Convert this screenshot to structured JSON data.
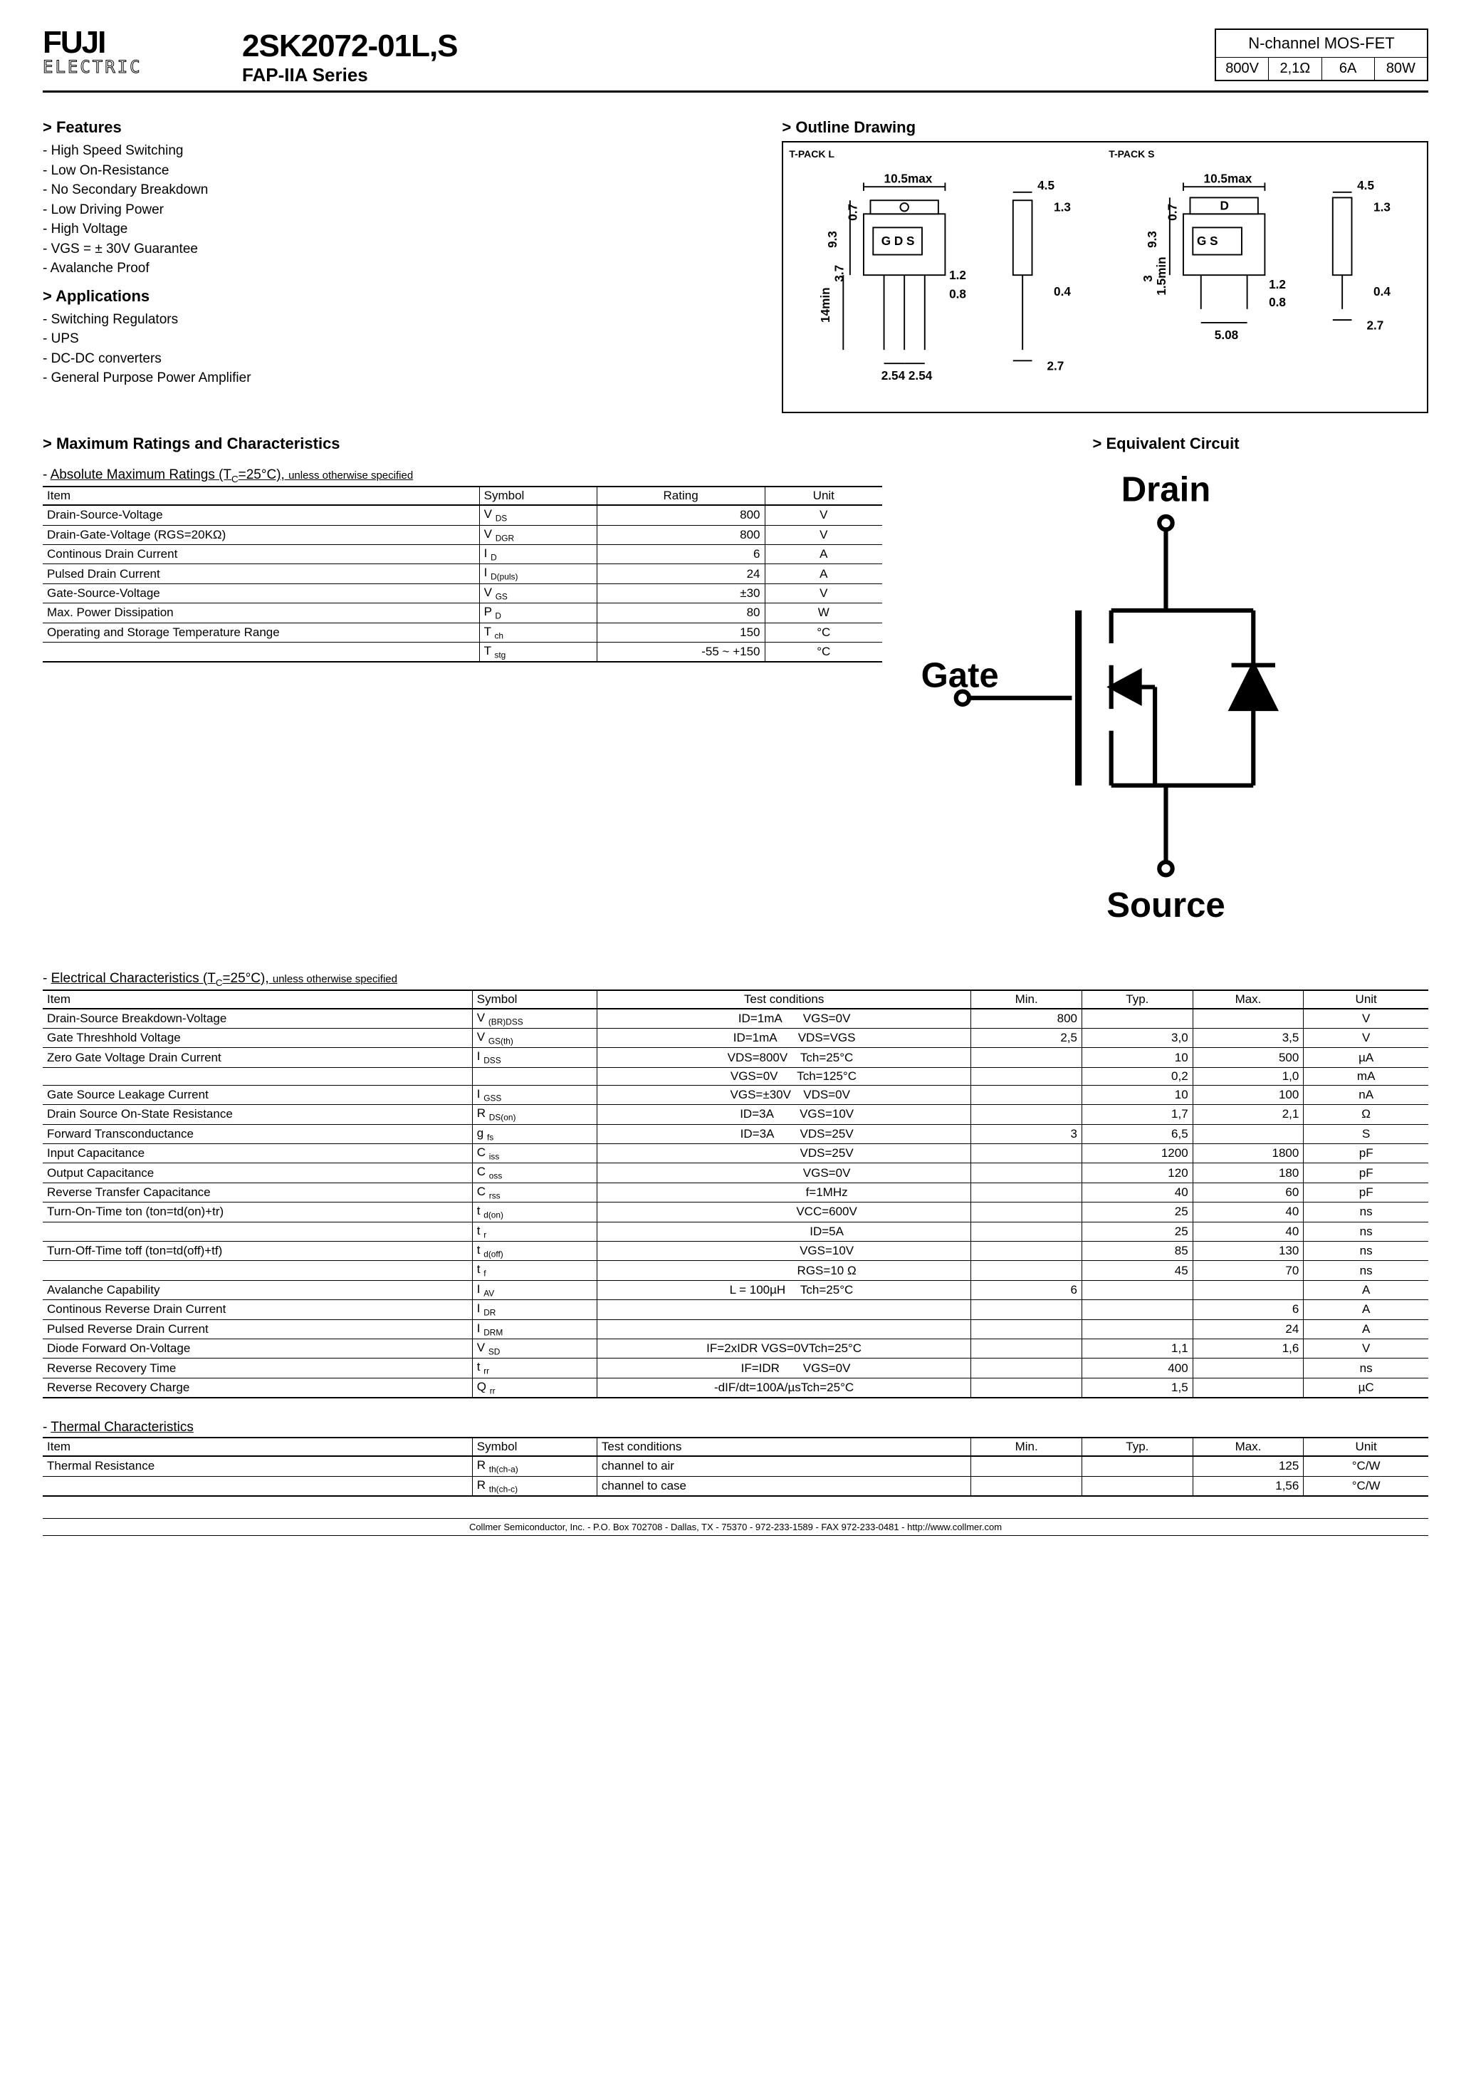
{
  "logo": {
    "line1": "FUJI",
    "line2": "ELECTRIC"
  },
  "title": {
    "part": "2SK2072-01L,S",
    "series": "FAP-IIA Series"
  },
  "specbox": {
    "heading": "N-channel MOS-FET",
    "cells": [
      "800V",
      "2,1Ω",
      "6A",
      "80W"
    ]
  },
  "features": {
    "heading": "Features",
    "items": [
      "High Speed Switching",
      "Low On-Resistance",
      "No Secondary Breakdown",
      "Low Driving Power",
      "High Voltage",
      "VGS = ± 30V Guarantee",
      "Avalanche Proof"
    ]
  },
  "applications": {
    "heading": "Applications",
    "items": [
      "Switching Regulators",
      "UPS",
      "DC-DC converters",
      "General Purpose Power Amplifier"
    ]
  },
  "outline": {
    "heading": "Outline Drawing",
    "pkg_l": "T-PACK L",
    "pkg_s": "T-PACK S",
    "dims": {
      "w_max": "10.5max",
      "h1": "4.5",
      "t1": "1.3",
      "t2": "0.7",
      "h_body": "9.3",
      "h_lead": "14min",
      "pins_l": "G D S",
      "pins_s": "G      S",
      "d_label": "D",
      "pitch1": "2.54",
      "pitch2": "2.54",
      "pitch_s": "5.08",
      "lead_w": "0.8",
      "lead_t": "1.2",
      "side_w": "2.7",
      "side_t": "0.4",
      "tab_h": "3.7",
      "tab_h_s": "1.5min",
      "tab2": "3"
    }
  },
  "ratings": {
    "heading": "Maximum Ratings and Characteristics",
    "caption_main": "Absolute Maximum Ratings (T",
    "caption_sub": "C",
    "caption_end": "=25°C), ",
    "caption_note": "unless otherwise specified",
    "cols": [
      "Item",
      "Symbol",
      "Rating",
      "Unit"
    ],
    "rows": [
      {
        "item": "Drain-Source-Voltage",
        "sym": "V",
        "sub": "DS",
        "rating": "800",
        "unit": "V"
      },
      {
        "item": "Drain-Gate-Voltage (RGS=20KΩ)",
        "sym": "V",
        "sub": "DGR",
        "rating": "800",
        "unit": "V"
      },
      {
        "item": "Continous Drain Current",
        "sym": "I",
        "sub": "D",
        "rating": "6",
        "unit": "A"
      },
      {
        "item": "Pulsed Drain Current",
        "sym": "I",
        "sub": "D(puls)",
        "rating": "24",
        "unit": "A"
      },
      {
        "item": "Gate-Source-Voltage",
        "sym": "V",
        "sub": "GS",
        "rating": "±30",
        "unit": "V"
      },
      {
        "item": "Max. Power Dissipation",
        "sym": "P",
        "sub": "D",
        "rating": "80",
        "unit": "W"
      },
      {
        "item": "Operating and Storage Temperature Range",
        "sym": "T",
        "sub": "ch",
        "rating": "150",
        "unit": "°C"
      },
      {
        "item": "",
        "sym": "T",
        "sub": "stg",
        "rating": "-55 ~ +150",
        "unit": "°C"
      }
    ]
  },
  "equiv": {
    "heading": "Equivalent Circuit",
    "labels": {
      "drain": "Drain",
      "gate": "Gate",
      "source": "Source"
    }
  },
  "elec": {
    "caption_main": "Electrical Characteristics (T",
    "caption_sub": "C",
    "caption_end": "=25°C), ",
    "caption_note": "unless otherwise specified",
    "cols": [
      "Item",
      "Symbol",
      "Test conditions",
      "Min.",
      "Typ.",
      "Max.",
      "Unit"
    ],
    "rows": [
      {
        "item": "Drain-Source Breakdown-Voltage",
        "sym": "V",
        "sub": "(BR)DSS",
        "c1": "ID=1mA",
        "c2": "VGS=0V",
        "min": "800",
        "typ": "",
        "max": "",
        "unit": "V"
      },
      {
        "item": "Gate Threshhold Voltage",
        "sym": "V",
        "sub": "GS(th)",
        "c1": "ID=1mA",
        "c2": "VDS=VGS",
        "min": "2,5",
        "typ": "3,0",
        "max": "3,5",
        "unit": "V"
      },
      {
        "item": "Zero Gate Voltage Drain Current",
        "sym": "I",
        "sub": "DSS",
        "c1": "VDS=800V",
        "c2": "Tch=25°C",
        "min": "",
        "typ": "10",
        "max": "500",
        "unit": "µA"
      },
      {
        "item": "",
        "sym": "",
        "sub": "",
        "c1": "VGS=0V",
        "c2": "Tch=125°C",
        "min": "",
        "typ": "0,2",
        "max": "1,0",
        "unit": "mA"
      },
      {
        "item": "Gate Source Leakage Current",
        "sym": "I",
        "sub": "GSS",
        "c1": "VGS=±30V",
        "c2": "VDS=0V",
        "min": "",
        "typ": "10",
        "max": "100",
        "unit": "nA"
      },
      {
        "item": "Drain Source On-State Resistance",
        "sym": "R",
        "sub": "DS(on)",
        "c1": "ID=3A",
        "c2": "VGS=10V",
        "min": "",
        "typ": "1,7",
        "max": "2,1",
        "unit": "Ω"
      },
      {
        "item": "Forward Transconductance",
        "sym": "g",
        "sub": "fs",
        "c1": "ID=3A",
        "c2": "VDS=25V",
        "min": "3",
        "typ": "6,5",
        "max": "",
        "unit": "S"
      },
      {
        "item": "Input Capacitance",
        "sym": "C",
        "sub": "iss",
        "c1": "",
        "c2": "VDS=25V",
        "min": "",
        "typ": "1200",
        "max": "1800",
        "unit": "pF"
      },
      {
        "item": "Output Capacitance",
        "sym": "C",
        "sub": "oss",
        "c1": "",
        "c2": "VGS=0V",
        "min": "",
        "typ": "120",
        "max": "180",
        "unit": "pF"
      },
      {
        "item": "Reverse Transfer Capacitance",
        "sym": "C",
        "sub": "rss",
        "c1": "",
        "c2": "f=1MHz",
        "min": "",
        "typ": "40",
        "max": "60",
        "unit": "pF"
      },
      {
        "item": "Turn-On-Time ton (ton=td(on)+tr)",
        "sym": "t",
        "sub": "d(on)",
        "c1": "",
        "c2": "VCC=600V",
        "min": "",
        "typ": "25",
        "max": "40",
        "unit": "ns"
      },
      {
        "item": "",
        "sym": "t",
        "sub": "r",
        "c1": "",
        "c2": "ID=5A",
        "min": "",
        "typ": "25",
        "max": "40",
        "unit": "ns"
      },
      {
        "item": "Turn-Off-Time toff (ton=td(off)+tf)",
        "sym": "t",
        "sub": "d(off)",
        "c1": "",
        "c2": "VGS=10V",
        "min": "",
        "typ": "85",
        "max": "130",
        "unit": "ns"
      },
      {
        "item": "",
        "sym": "t",
        "sub": "f",
        "c1": "",
        "c2": "RGS=10 Ω",
        "min": "",
        "typ": "45",
        "max": "70",
        "unit": "ns"
      },
      {
        "item": "Avalanche Capability",
        "sym": "I",
        "sub": "AV",
        "c1": "L = 100µH",
        "c2": "Tch=25°C",
        "min": "6",
        "typ": "",
        "max": "",
        "unit": "A"
      },
      {
        "item": "Continous Reverse Drain Current",
        "sym": "I",
        "sub": "DR",
        "c1": "",
        "c2": "",
        "min": "",
        "typ": "",
        "max": "6",
        "unit": "A"
      },
      {
        "item": "Pulsed Reverse Drain Current",
        "sym": "I",
        "sub": "DRM",
        "c1": "",
        "c2": "",
        "min": "",
        "typ": "",
        "max": "24",
        "unit": "A"
      },
      {
        "item": "Diode Forward On-Voltage",
        "sym": "V",
        "sub": "SD",
        "c1": "IF=2xIDR  VGS=0V",
        "c2": "Tch=25°C",
        "min": "",
        "typ": "1,1",
        "max": "1,6",
        "unit": "V"
      },
      {
        "item": "Reverse Recovery Time",
        "sym": "t",
        "sub": "rr",
        "c1": "IF=IDR",
        "c2": "VGS=0V",
        "min": "",
        "typ": "400",
        "max": "",
        "unit": "ns"
      },
      {
        "item": "Reverse Recovery Charge",
        "sym": "Q",
        "sub": "rr",
        "c1": "-dIF/dt=100A/µs",
        "c2": "Tch=25°C",
        "min": "",
        "typ": "1,5",
        "max": "",
        "unit": "µC"
      }
    ]
  },
  "thermal": {
    "caption": "Thermal Characteristics",
    "cols": [
      "Item",
      "Symbol",
      "Test conditions",
      "Min.",
      "Typ.",
      "Max.",
      "Unit"
    ],
    "rows": [
      {
        "item": "Thermal Resistance",
        "sym": "R",
        "sub": "th(ch-a)",
        "cond": "channel to air",
        "min": "",
        "typ": "",
        "max": "125",
        "unit": "°C/W"
      },
      {
        "item": "",
        "sym": "R",
        "sub": "th(ch-c)",
        "cond": "channel to case",
        "min": "",
        "typ": "",
        "max": "1,56",
        "unit": "°C/W"
      }
    ]
  },
  "footer": "Collmer Semiconductor, Inc. - P.O. Box 702708 - Dallas, TX - 75370 - 972-233-1589 - FAX 972-233-0481 - http://www.collmer.com"
}
